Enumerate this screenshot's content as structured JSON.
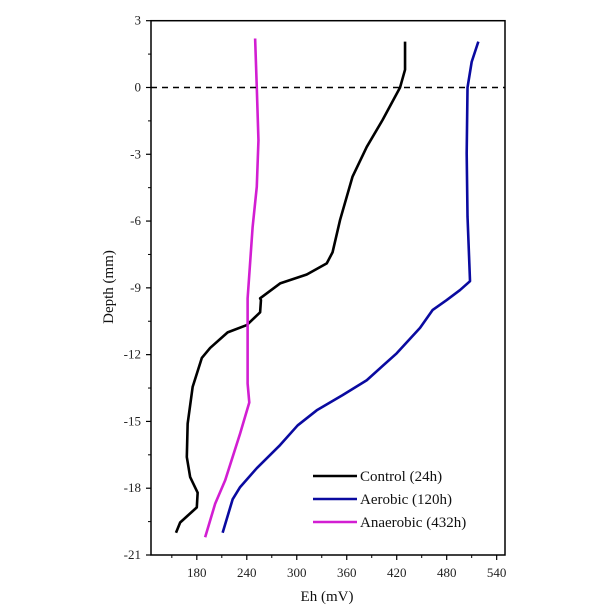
{
  "chart_data": {
    "type": "line",
    "xlabel": "Eh (mV)",
    "ylabel": "Depth (mm)",
    "xlim": [
      125,
      550
    ],
    "ylim": [
      -21,
      3
    ],
    "xticks": [
      180,
      240,
      300,
      360,
      420,
      480,
      540
    ],
    "yticks": [
      3,
      0,
      -3,
      -6,
      -9,
      -12,
      -15,
      -18,
      -21
    ],
    "grid": false,
    "legend_position": "bottom-right",
    "reference_line": {
      "y": 0,
      "style": "dashed"
    },
    "series": [
      {
        "name": "Control (24h)",
        "color": "#000000",
        "points": [
          [
            430,
            2.06
          ],
          [
            430,
            0.8
          ],
          [
            424,
            0
          ],
          [
            403,
            -1.46
          ],
          [
            384,
            -2.67
          ],
          [
            367,
            -4.0
          ],
          [
            352,
            -5.95
          ],
          [
            343,
            -7.4
          ],
          [
            336,
            -7.9
          ],
          [
            312,
            -8.4
          ],
          [
            280,
            -8.8
          ],
          [
            256,
            -9.47
          ],
          [
            257,
            -9.55
          ],
          [
            256,
            -10.1
          ],
          [
            240,
            -10.67
          ],
          [
            217,
            -11.0
          ],
          [
            196,
            -11.7
          ],
          [
            186,
            -12.15
          ],
          [
            175,
            -13.45
          ],
          [
            169,
            -15.1
          ],
          [
            168,
            -16.6
          ],
          [
            172,
            -17.5
          ],
          [
            181,
            -18.2
          ],
          [
            180,
            -18.86
          ],
          [
            160,
            -19.54
          ],
          [
            155,
            -20.0
          ]
        ]
      },
      {
        "name": "Aerobic (120h)",
        "color": "#0a0aa0",
        "points": [
          [
            518,
            2.06
          ],
          [
            510,
            1.15
          ],
          [
            505,
            0
          ],
          [
            504,
            -2.96
          ],
          [
            505,
            -5.8
          ],
          [
            508,
            -8.7
          ],
          [
            496,
            -9.1
          ],
          [
            480,
            -9.55
          ],
          [
            463,
            -10.0
          ],
          [
            448,
            -10.8
          ],
          [
            420,
            -11.94
          ],
          [
            384,
            -13.15
          ],
          [
            355,
            -13.82
          ],
          [
            324,
            -14.5
          ],
          [
            301,
            -15.18
          ],
          [
            280,
            -16.06
          ],
          [
            252,
            -17.1
          ],
          [
            232,
            -17.95
          ],
          [
            223,
            -18.5
          ],
          [
            211,
            -20.0
          ]
        ]
      },
      {
        "name": "Anaerobic (432h)",
        "color": "#d21ed2",
        "points": [
          [
            250,
            2.2
          ],
          [
            252,
            0
          ],
          [
            254,
            -2.37
          ],
          [
            252,
            -4.46
          ],
          [
            247,
            -6.27
          ],
          [
            241,
            -9.47
          ],
          [
            241,
            -9.55
          ],
          [
            241,
            -13.3
          ],
          [
            243,
            -14.15
          ],
          [
            232,
            -15.54
          ],
          [
            214,
            -17.65
          ],
          [
            202,
            -18.7
          ],
          [
            190,
            -20.2
          ]
        ]
      }
    ]
  }
}
